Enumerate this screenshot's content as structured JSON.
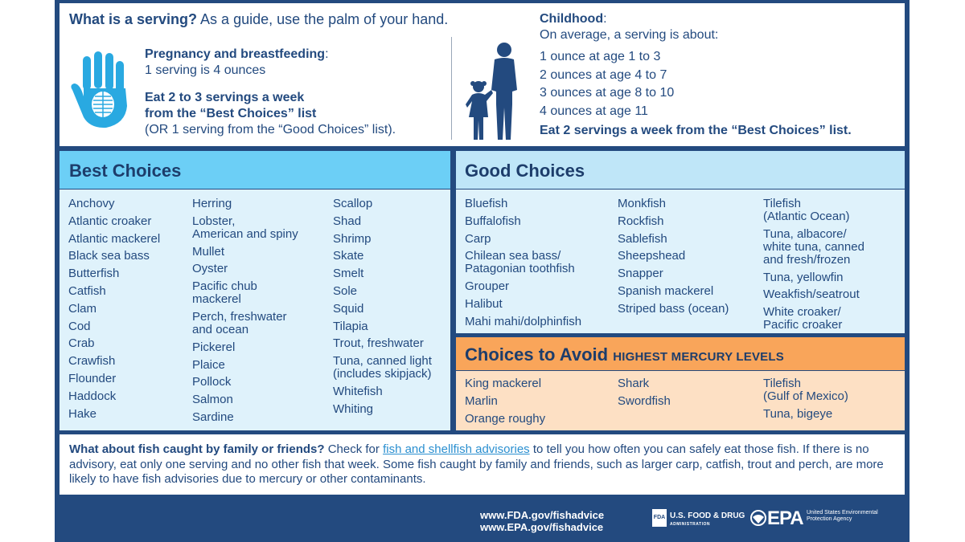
{
  "serving": {
    "question_bold": "What is a serving?",
    "question_rest": " As a guide, use the palm of your hand.",
    "hand_icon": "hand-palm-icon",
    "pregnancy_heading": "Pregnancy and breastfeeding",
    "pregnancy_colon": ":",
    "pregnancy_serving": "1 serving is 4 ounces",
    "eat_line1": "Eat 2 to 3 servings a week",
    "eat_line2": "from the “Best Choices” list",
    "eat_alt": "(OR 1 serving from the “Good Choices” list)."
  },
  "childhood": {
    "heading": "Childhood",
    "colon": ":",
    "intro": "On average, a serving is about:",
    "ages": [
      "1 ounce at age 1 to 3",
      "2 ounces at age 4 to 7",
      "3 ounces at age 8 to 10",
      "4 ounces at age 11"
    ],
    "recommendation": "Eat 2 servings a week from the “Best Choices” list.",
    "kids_icon": "children-silhouette-icon"
  },
  "best_choices": {
    "title": "Best Choices",
    "columns": [
      [
        "Anchovy",
        "Atlantic croaker",
        "Atlantic mackerel",
        "Black sea bass",
        "Butterfish",
        "Catfish",
        "Clam",
        "Cod",
        "Crab",
        "Crawfish",
        "Flounder",
        "Haddock",
        "Hake"
      ],
      [
        "Herring",
        "Lobster,\nAmerican and spiny",
        "Mullet",
        "Oyster",
        "Pacific chub\nmackerel",
        "Perch, freshwater\nand ocean",
        "Pickerel",
        "Plaice",
        "Pollock",
        "Salmon",
        "Sardine"
      ],
      [
        "Scallop",
        "Shad",
        "Shrimp",
        "Skate",
        "Smelt",
        "Sole",
        "Squid",
        "Tilapia",
        "Trout, freshwater",
        "Tuna, canned light\n(includes skipjack)",
        "Whitefish",
        "Whiting"
      ]
    ]
  },
  "good_choices": {
    "title": "Good Choices",
    "columns": [
      [
        "Bluefish",
        "Buffalofish",
        "Carp",
        "Chilean sea bass/\nPatagonian toothfish",
        "Grouper",
        "Halibut",
        "Mahi mahi/dolphinfish"
      ],
      [
        "Monkfish",
        "Rockfish",
        "Sablefish",
        "Sheepshead",
        "Snapper",
        "Spanish mackerel",
        "Striped bass (ocean)"
      ],
      [
        "Tilefish\n(Atlantic Ocean)",
        "Tuna, albacore/\nwhite tuna, canned\nand fresh/frozen",
        "Tuna, yellowfin",
        "Weakfish/seatrout",
        "White croaker/\nPacific croaker"
      ]
    ]
  },
  "avoid": {
    "title": "Choices to Avoid",
    "subtitle": "HIGHEST MERCURY LEVELS",
    "columns": [
      [
        "King mackerel",
        "Marlin",
        "Orange roughy"
      ],
      [
        "Shark",
        "Swordfish"
      ],
      [
        "Tilefish\n(Gulf of Mexico)",
        "Tuna, bigeye"
      ]
    ]
  },
  "note": {
    "question": "What about fish caught by family or friends?",
    "pre_link": " Check for ",
    "link": "fish and shellfish advisories",
    "post_link": " to tell you how often you can safely eat those fish. If there is no advisory, eat only one serving and no other fish that week. Some fish caught by family and friends, such as larger carp, catfish, trout and perch, are more likely to have fish advisories due to mercury or other contaminants."
  },
  "footer": {
    "url_fda": "www.FDA.gov/fishadvice",
    "url_epa": "www.EPA.gov/fishadvice",
    "fda_box": "FDA",
    "fda_name": "U.S. FOOD & DRUG",
    "fda_sub": "ADMINISTRATION",
    "epa_name": "EPA",
    "epa_sub": "United States Environmental Protection Agency",
    "fda_icon": "fda-logo-icon",
    "epa_icon": "epa-logo-icon"
  },
  "colors": {
    "navy": "#234a7f",
    "best_header": "#6ccff6",
    "good_header": "#bfe6f8",
    "avoid_header": "#f9a55a",
    "panel_light_blue": "#dff2fb",
    "panel_light_orange": "#fde0c4"
  }
}
